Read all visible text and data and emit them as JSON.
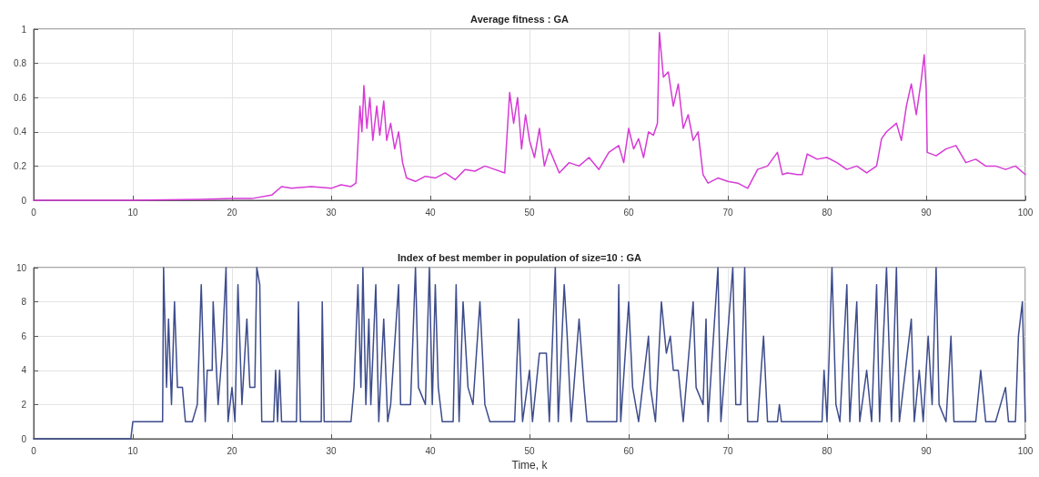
{
  "chart_data": [
    {
      "type": "line",
      "title": "Average fitness : GA",
      "grid": true,
      "xlim": [
        0,
        100
      ],
      "xticks": [
        0,
        10,
        20,
        30,
        40,
        50,
        60,
        70,
        80,
        90,
        100
      ],
      "ylim": [
        0,
        1
      ],
      "yticks": [
        0,
        0.2,
        0.4,
        0.6,
        0.8,
        1
      ],
      "x": [
        0,
        10,
        17,
        20,
        22,
        24,
        25,
        26,
        28,
        30,
        31,
        32,
        32.5,
        32.9,
        33.1,
        33.3,
        33.6,
        33.9,
        34.2,
        34.6,
        34.9,
        35.3,
        35.6,
        36,
        36.4,
        36.8,
        37.2,
        37.6,
        38.5,
        39.5,
        40.5,
        41.5,
        42.5,
        43.5,
        44.5,
        45.5,
        46.5,
        47.5,
        48,
        48.4,
        48.8,
        49.2,
        49.6,
        50,
        50.5,
        51,
        51.5,
        52,
        53,
        54,
        55,
        56,
        57,
        58,
        59,
        59.5,
        60,
        60.5,
        61,
        61.5,
        62,
        62.5,
        62.9,
        63.1,
        63.5,
        64,
        64.5,
        65,
        65.5,
        66,
        66.5,
        67,
        67.5,
        68,
        69,
        70,
        71,
        72,
        73,
        74,
        75,
        75.5,
        76,
        77,
        77.5,
        78,
        79,
        80,
        81,
        82,
        83,
        84,
        85,
        85.5,
        86,
        87,
        87.5,
        88,
        88.5,
        89,
        89.5,
        89.8,
        90,
        90.1,
        91,
        92,
        93,
        94,
        95,
        96,
        97,
        98,
        99,
        100
      ],
      "series": [
        {
          "color": "#d63bd6",
          "values": [
            0,
            0,
            0.005,
            0.01,
            0.01,
            0.03,
            0.08,
            0.07,
            0.08,
            0.07,
            0.09,
            0.08,
            0.1,
            0.55,
            0.4,
            0.67,
            0.42,
            0.6,
            0.35,
            0.55,
            0.38,
            0.58,
            0.35,
            0.45,
            0.3,
            0.4,
            0.22,
            0.13,
            0.11,
            0.14,
            0.13,
            0.16,
            0.12,
            0.18,
            0.17,
            0.2,
            0.18,
            0.16,
            0.63,
            0.45,
            0.6,
            0.3,
            0.5,
            0.35,
            0.25,
            0.42,
            0.2,
            0.3,
            0.16,
            0.22,
            0.2,
            0.25,
            0.18,
            0.28,
            0.32,
            0.22,
            0.42,
            0.3,
            0.36,
            0.25,
            0.4,
            0.38,
            0.45,
            0.98,
            0.72,
            0.75,
            0.55,
            0.68,
            0.42,
            0.5,
            0.35,
            0.4,
            0.15,
            0.1,
            0.13,
            0.11,
            0.1,
            0.07,
            0.18,
            0.2,
            0.28,
            0.15,
            0.16,
            0.15,
            0.15,
            0.27,
            0.24,
            0.25,
            0.22,
            0.18,
            0.2,
            0.16,
            0.2,
            0.36,
            0.4,
            0.45,
            0.35,
            0.55,
            0.68,
            0.5,
            0.7,
            0.85,
            0.65,
            0.28,
            0.26,
            0.3,
            0.32,
            0.22,
            0.24,
            0.2,
            0.2,
            0.18,
            0.2,
            0.15
          ]
        }
      ]
    },
    {
      "type": "line",
      "title": "Index of best member in population of size=10 : GA",
      "xlabel": "Time, k",
      "grid": true,
      "xlim": [
        0,
        100
      ],
      "xticks": [
        0,
        10,
        20,
        30,
        40,
        50,
        60,
        70,
        80,
        90,
        100
      ],
      "ylim": [
        0,
        10
      ],
      "yticks": [
        0,
        2,
        4,
        6,
        8,
        10
      ],
      "x": [
        0,
        9.8,
        10,
        13,
        13.1,
        13.4,
        13.6,
        13.9,
        14.2,
        14.5,
        15,
        15.3,
        16,
        16.5,
        16.9,
        17.3,
        17.5,
        18,
        18.1,
        18.6,
        19,
        19.4,
        19.6,
        20,
        20.3,
        20.6,
        21,
        21.5,
        21.8,
        22.3,
        22.5,
        22.8,
        23,
        24.2,
        24.4,
        24.6,
        24.8,
        25,
        26.5,
        26.7,
        26.9,
        29,
        29.1,
        29.3,
        32,
        32.3,
        32.7,
        33,
        33.2,
        33.5,
        33.8,
        34,
        34.5,
        34.8,
        35.3,
        35.7,
        36,
        36.8,
        37,
        38,
        38.5,
        38.8,
        39.5,
        39.9,
        40.2,
        40.5,
        40.8,
        41.2,
        42.3,
        42.6,
        42.9,
        43.3,
        43.8,
        44.3,
        45,
        45.5,
        46,
        48.5,
        48.9,
        49.3,
        50,
        50.3,
        51,
        51.7,
        52,
        52.6,
        52.9,
        53.5,
        53.8,
        54.2,
        55,
        55.5,
        55.8,
        58.8,
        59,
        59.2,
        60,
        60.4,
        61,
        62,
        62.2,
        62.7,
        63.3,
        63.8,
        64.2,
        64.5,
        65,
        65.5,
        66.5,
        66.8,
        67.5,
        67.8,
        68,
        69,
        69.3,
        70.5,
        70.8,
        71.3,
        71.7,
        72,
        73,
        73.6,
        74,
        75,
        75.2,
        75.4,
        79.5,
        79.7,
        80,
        80.5,
        80.9,
        81.3,
        82,
        82.3,
        83,
        83.3,
        84,
        84.5,
        85,
        85.3,
        86,
        86.5,
        87,
        87.3,
        88.5,
        88.8,
        89.3,
        89.7,
        90.2,
        90.6,
        91,
        91.3,
        92,
        92.5,
        92.8,
        95,
        95.5,
        96,
        97,
        97.5,
        98,
        98.3,
        99,
        99.3,
        99.7,
        100
      ],
      "series": [
        {
          "color": "#3d4c8c",
          "values": [
            0,
            0,
            1,
            1,
            10,
            3,
            7,
            2,
            8,
            3,
            3,
            1,
            1,
            2,
            9,
            1,
            4,
            4,
            8,
            2,
            5,
            10,
            1,
            3,
            1,
            9,
            2,
            7,
            3,
            3,
            10,
            9,
            1,
            1,
            4,
            1,
            4,
            1,
            1,
            8,
            1,
            1,
            8,
            1,
            1,
            3,
            9,
            3,
            10,
            2,
            7,
            2,
            9,
            1,
            7,
            1,
            2,
            9,
            2,
            2,
            10,
            3,
            2,
            10,
            2,
            9,
            3,
            1,
            1,
            9,
            1,
            8,
            3,
            2,
            8,
            2,
            1,
            1,
            7,
            1,
            4,
            1,
            5,
            5,
            1,
            10,
            1,
            9,
            6,
            1,
            7,
            3,
            1,
            1,
            9,
            1,
            8,
            3,
            1,
            6,
            3,
            1,
            8,
            5,
            6,
            4,
            4,
            1,
            8,
            3,
            2,
            7,
            1,
            10,
            1,
            10,
            2,
            2,
            10,
            1,
            1,
            6,
            1,
            1,
            2,
            1,
            1,
            4,
            1,
            10,
            2,
            1,
            9,
            1,
            8,
            1,
            4,
            1,
            9,
            1,
            10,
            1,
            10,
            1,
            7,
            1,
            4,
            1,
            6,
            2,
            10,
            2,
            1,
            6,
            1,
            1,
            4,
            1,
            1,
            2,
            3,
            1,
            1,
            6,
            8,
            1
          ]
        }
      ]
    }
  ]
}
